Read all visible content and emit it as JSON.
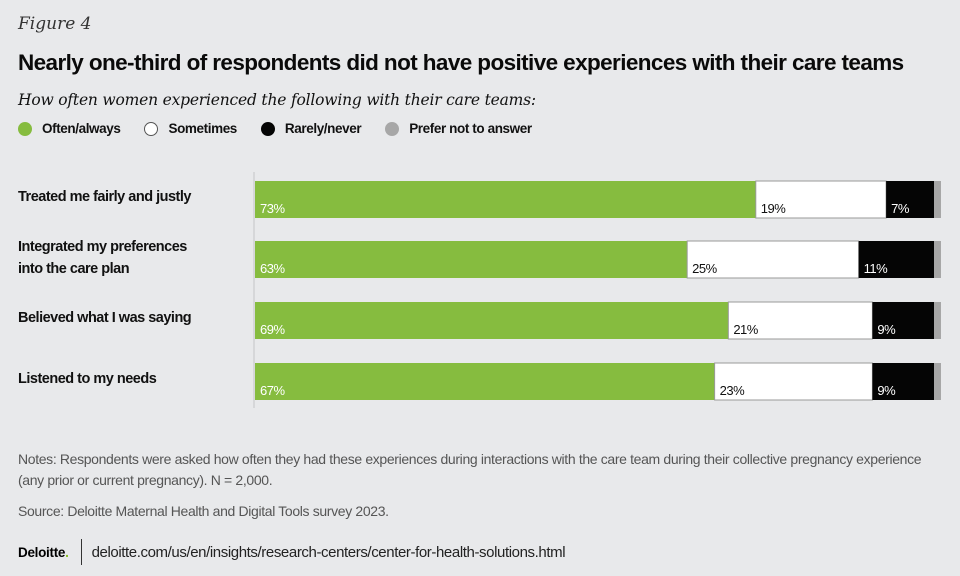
{
  "figure_label": "Figure 4",
  "title": "Nearly one-third of respondents did not have positive experiences with their care teams",
  "subtitle": "How often women experienced the following with their care teams:",
  "legend": [
    {
      "label": "Often/always",
      "color": "#86bc3f",
      "border": "#86bc3f"
    },
    {
      "label": "Sometimes",
      "color": "#ffffff",
      "border": "#555555"
    },
    {
      "label": "Rarely/never",
      "color": "#050505",
      "border": "#050505"
    },
    {
      "label": "Prefer not to answer",
      "color": "#a7a7a7",
      "border": "#a7a7a7"
    }
  ],
  "chart_data": {
    "type": "bar",
    "orientation": "horizontal",
    "stacked": true,
    "title": "Nearly one-third of respondents did not have positive experiences with their care teams",
    "subtitle": "How often women experienced the following with their care teams:",
    "xlabel": "",
    "ylabel": "",
    "xlim": [
      0,
      100
    ],
    "grid": false,
    "legend_position": "top-left",
    "categories": [
      "Treated me fairly and justly",
      "Integrated my preferences into the care plan",
      "Believed what I was saying",
      "Listened to my needs"
    ],
    "category_lines": [
      [
        "Treated me fairly and justly"
      ],
      [
        "Integrated my preferences",
        "into the care plan"
      ],
      [
        "Believed what I was saying"
      ],
      [
        "Listened to my needs"
      ]
    ],
    "series": [
      {
        "name": "Often/always",
        "color": "#86bc3f",
        "label_color": "#ffffff",
        "values": [
          73,
          63,
          69,
          67
        ],
        "labels": [
          "73%",
          "63%",
          "69%",
          "67%"
        ]
      },
      {
        "name": "Sometimes",
        "color": "#ffffff",
        "label_color": "#111111",
        "values": [
          19,
          25,
          21,
          23
        ],
        "labels": [
          "19%",
          "25%",
          "21%",
          "23%"
        ]
      },
      {
        "name": "Rarely/never",
        "color": "#050505",
        "label_color": "#ffffff",
        "values": [
          7,
          11,
          9,
          9
        ],
        "labels": [
          "7%",
          "11%",
          "9%",
          "9%"
        ]
      },
      {
        "name": "Prefer not to answer",
        "color": "#a7a7a7",
        "label_color": "#111111",
        "values": [
          1,
          1,
          1,
          1
        ],
        "labels": [
          "",
          "",
          "",
          ""
        ]
      }
    ]
  },
  "notes": "Notes: Respondents were asked how often they had these experiences during interactions with the care team during their collective pregnancy experience (any prior or current pregnancy). N = 2,000.",
  "source": "Source: Deloitte Maternal Health and Digital Tools survey 2023.",
  "footer": {
    "brand": "Deloitte",
    "brand_dot": ".",
    "url": "deloitte.com/us/en/insights/research-centers/center-for-health-solutions.html"
  }
}
